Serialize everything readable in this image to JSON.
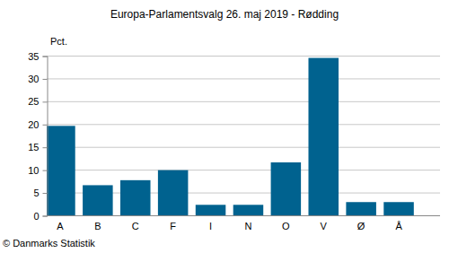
{
  "chart_data": {
    "type": "bar",
    "title": "Europa-Parlamentsvalg 26. maj 2019 - Rødding",
    "y_label": "Pct.",
    "source": "© Danmarks Statistik",
    "categories": [
      "A",
      "B",
      "C",
      "F",
      "I",
      "N",
      "O",
      "V",
      "Ø",
      "Å"
    ],
    "values": [
      19.6,
      6.6,
      7.7,
      9.9,
      2.3,
      2.3,
      11.6,
      34.5,
      2.9,
      2.9
    ],
    "color": "#00628f",
    "ylim": [
      0,
      35
    ],
    "yticks": [
      0,
      5,
      10,
      15,
      20,
      25,
      30,
      35
    ],
    "grid": true
  }
}
